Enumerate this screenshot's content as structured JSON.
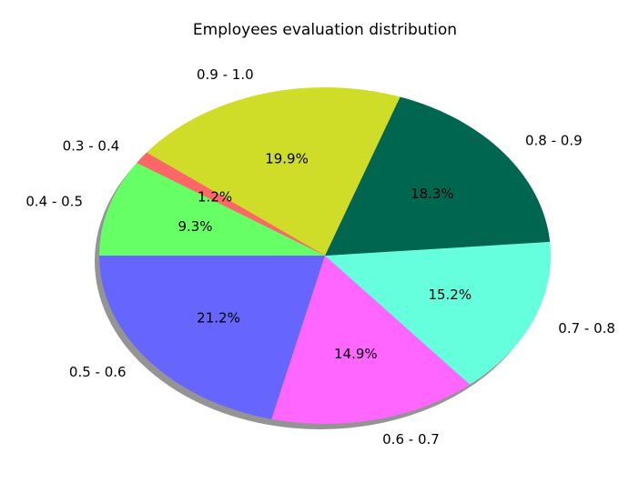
{
  "chart_data": {
    "type": "pie",
    "title": "Employees evaluation distribution",
    "shadow": true,
    "start_angle_deg": 180,
    "direction": "counterclockwise",
    "slices": [
      {
        "label": "0.5 - 0.6",
        "value": 21.2,
        "pct_label": "21.2%",
        "color": "#6666ff"
      },
      {
        "label": "0.6 - 0.7",
        "value": 14.9,
        "pct_label": "14.9%",
        "color": "#ff66ff"
      },
      {
        "label": "0.7 - 0.8",
        "value": 15.2,
        "pct_label": "15.2%",
        "color": "#66ffdd"
      },
      {
        "label": "0.8 - 0.9",
        "value": 18.3,
        "pct_label": "18.3%",
        "color": "#006650"
      },
      {
        "label": "0.9 - 1.0",
        "value": 19.9,
        "pct_label": "19.9%",
        "color": "#d0dd28"
      },
      {
        "label": "0.3 - 0.4",
        "value": 1.2,
        "pct_label": "1.2%",
        "color": "#ff6666"
      },
      {
        "label": "0.4 - 0.5",
        "value": 9.3,
        "pct_label": "9.3%",
        "color": "#66ff66"
      }
    ]
  }
}
